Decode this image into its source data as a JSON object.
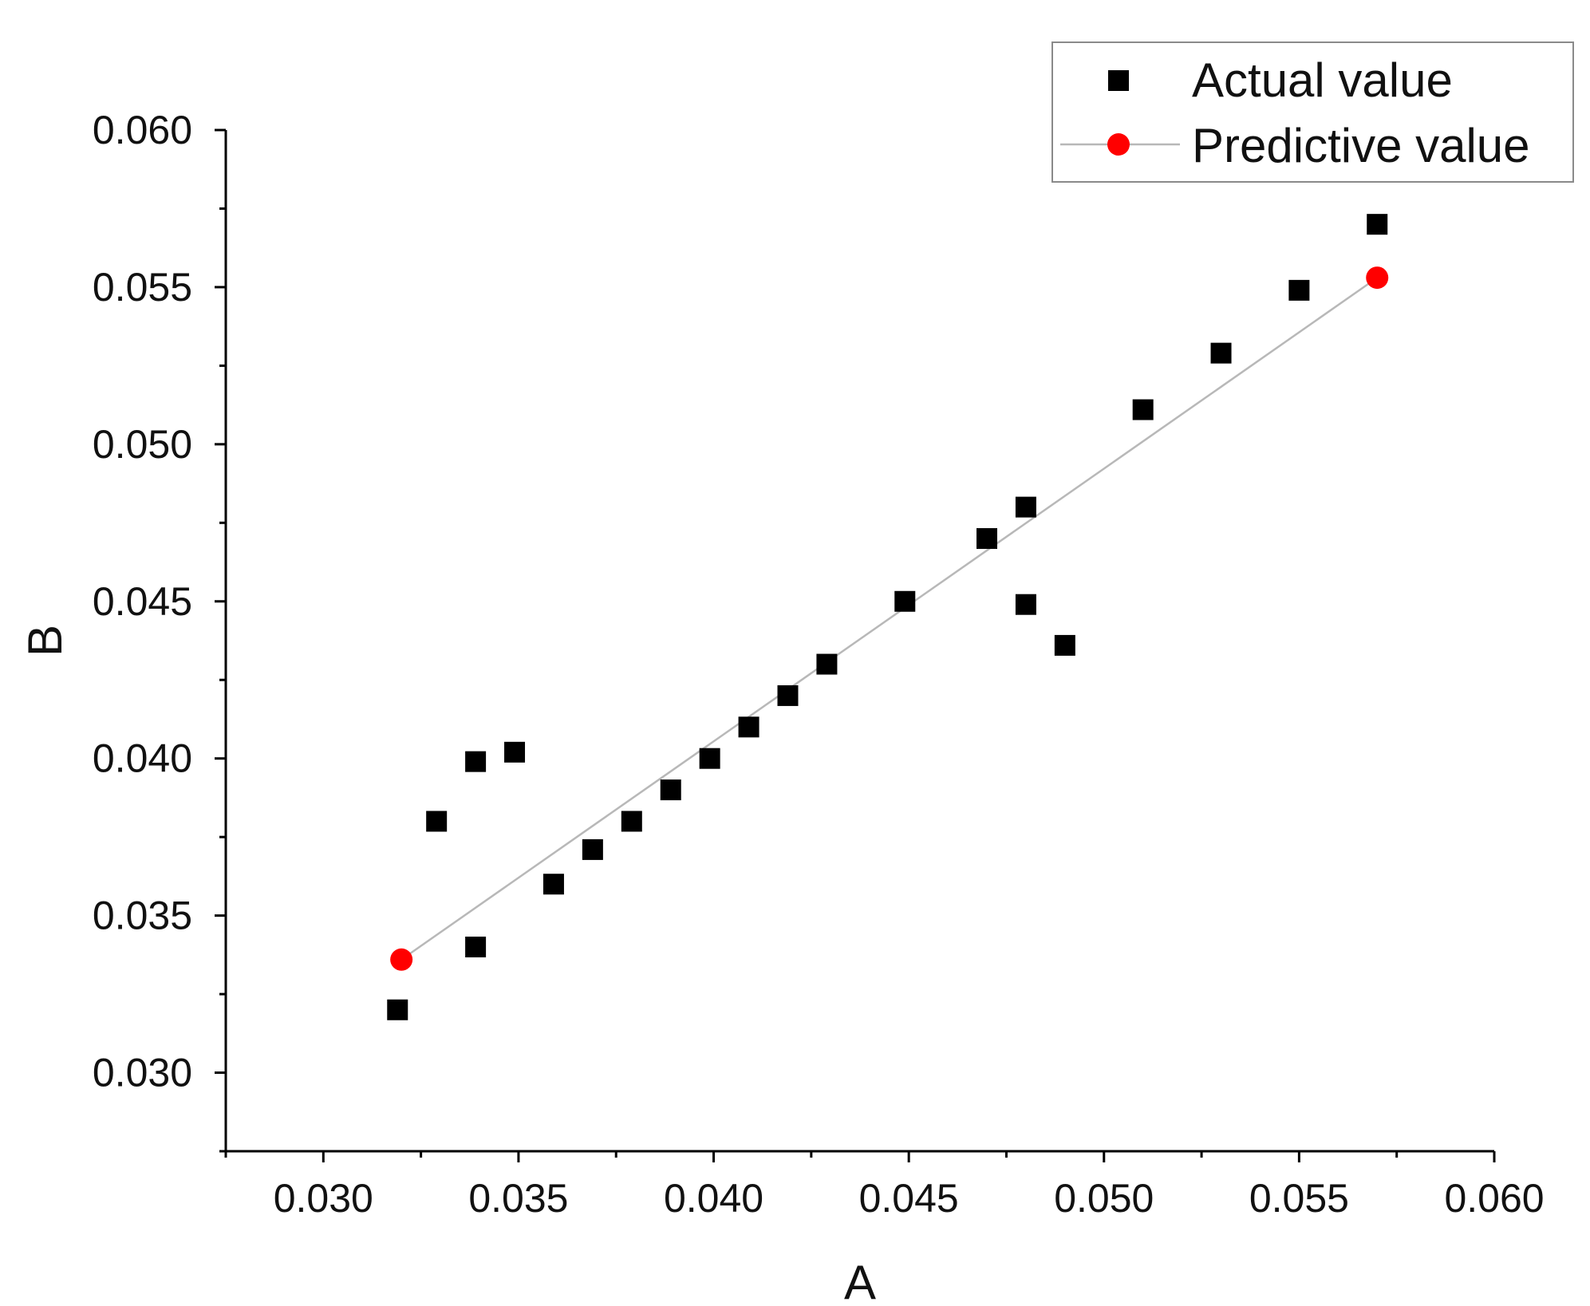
{
  "chart_data": {
    "type": "scatter",
    "xlabel": "A",
    "ylabel": "B",
    "xlim": [
      0.0275,
      0.06
    ],
    "ylim": [
      0.0275,
      0.06
    ],
    "x_ticks": [
      "0.030",
      "0.035",
      "0.040",
      "0.045",
      "0.050",
      "0.055",
      "0.060"
    ],
    "y_ticks": [
      "0.030",
      "0.035",
      "0.040",
      "0.045",
      "0.050",
      "0.055",
      "0.060"
    ],
    "grid": false,
    "legend_position": "top-right",
    "series": [
      {
        "name": "Actual value",
        "marker": "square",
        "color": "#000000",
        "points": [
          [
            0.0319,
            0.032
          ],
          [
            0.0329,
            0.038
          ],
          [
            0.0339,
            0.034
          ],
          [
            0.0339,
            0.0399
          ],
          [
            0.0349,
            0.0402
          ],
          [
            0.0359,
            0.036
          ],
          [
            0.0369,
            0.0371
          ],
          [
            0.0379,
            0.038
          ],
          [
            0.0389,
            0.039
          ],
          [
            0.0399,
            0.04
          ],
          [
            0.0409,
            0.041
          ],
          [
            0.0419,
            0.042
          ],
          [
            0.0429,
            0.043
          ],
          [
            0.0449,
            0.045
          ],
          [
            0.047,
            0.047
          ],
          [
            0.048,
            0.048
          ],
          [
            0.048,
            0.0449
          ],
          [
            0.049,
            0.0436
          ],
          [
            0.051,
            0.0511
          ],
          [
            0.053,
            0.0529
          ],
          [
            0.055,
            0.0549
          ],
          [
            0.057,
            0.057
          ]
        ]
      },
      {
        "name": "Predictive value",
        "marker": "circle",
        "color": "#ff0000",
        "line_color": "#b8b8b8",
        "points": [
          [
            0.032,
            0.0336
          ],
          [
            0.057,
            0.0553
          ]
        ]
      }
    ]
  }
}
